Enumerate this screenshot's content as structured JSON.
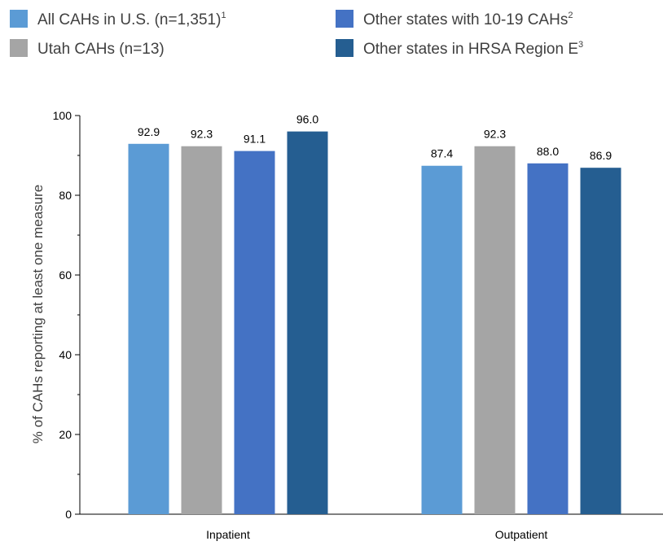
{
  "chart_data": {
    "type": "bar",
    "title": "",
    "xlabel": "",
    "ylabel": "% of CAHs reporting at least one measure",
    "ylim": [
      0,
      100
    ],
    "yticks": [
      0,
      20,
      40,
      60,
      80,
      100
    ],
    "grid": false,
    "legend_position": "top",
    "categories": [
      "Inpatient",
      "Outpatient"
    ],
    "series": [
      {
        "name": "All CAHs in U.S. (n=1,351)",
        "footnote": "1",
        "color": "#5b9bd5",
        "values": [
          92.9,
          87.4
        ],
        "labels": [
          "92.9",
          "87.4"
        ]
      },
      {
        "name": "Utah CAHs (n=13)",
        "footnote": "",
        "color": "#a5a5a5",
        "values": [
          92.3,
          92.3
        ],
        "labels": [
          "92.3",
          "92.3"
        ]
      },
      {
        "name": "Other states with 10-19 CAHs",
        "footnote": "2",
        "color": "#4472c4",
        "values": [
          91.1,
          88.0
        ],
        "labels": [
          "91.1",
          "88.0"
        ]
      },
      {
        "name": "Other states in HRSA Region E",
        "footnote": "3",
        "color": "#255e91",
        "values": [
          96.0,
          86.9
        ],
        "labels": [
          "96.0",
          "86.9"
        ]
      }
    ]
  }
}
